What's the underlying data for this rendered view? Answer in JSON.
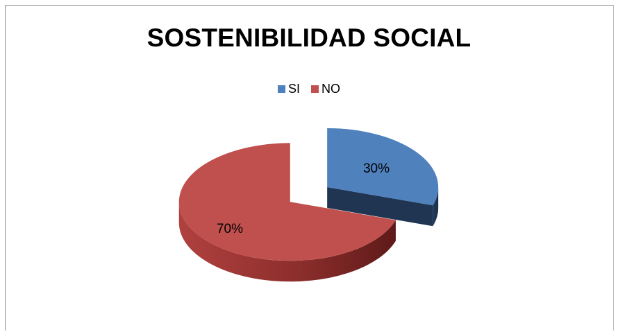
{
  "chart_data": {
    "type": "pie",
    "title": "SOSTENIBILIDAD SOCIAL",
    "categories": [
      "SI",
      "NO"
    ],
    "values": [
      30,
      70
    ],
    "value_labels": [
      "30%",
      "70%"
    ],
    "colors": [
      "#4f81bd",
      "#c0504d"
    ],
    "legend_position": "top",
    "style": "3d-exploded"
  }
}
